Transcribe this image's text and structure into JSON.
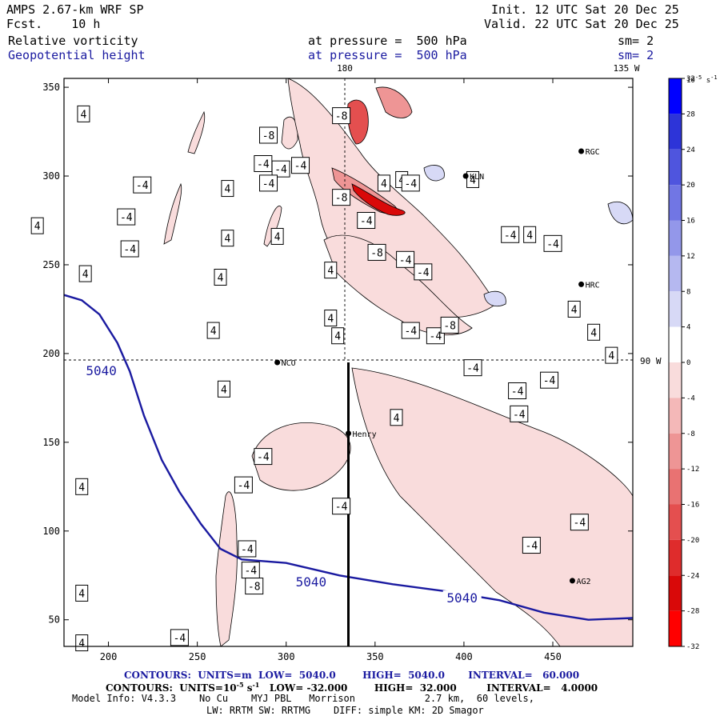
{
  "header": {
    "model": "AMPS 2.67-km WRF SP",
    "fcst": "Fcst.    10 h",
    "init": "Init. 12 UTC Sat 20 Dec 25",
    "valid": "Valid. 22 UTC Sat 20 Dec 25",
    "field1": "Relative vorticity",
    "field2": "Geopotential height",
    "pressure1": "at pressure =  500 hPa",
    "pressure2": "at pressure =  500 hPa",
    "sm1": "sm= 2",
    "sm2": "sm= 2"
  },
  "footer": {
    "line1": "CONTOURS:  UNITS=m  LOW=  5040.0        HIGH=  5040.0       INTERVAL=   60.000",
    "line2_pre": "CONTOURS:  UNITS=10",
    "line2_exp1": "-5",
    "line2_s": " s",
    "line2_exp2": "-1",
    "line2_post": "   LOW= -32.000        HIGH=  32.000         INTERVAL=   4.0000",
    "line3": "Model Info: V4.3.3    No Cu    MYJ PBL   Morrison            2.7 km,  60 levels,",
    "line4": "LW: RRTM SW: RRTMG    DIFF: simple KM: 2D Smagor"
  },
  "colors": {
    "height_contour": "#1a1aa0",
    "pos_vort": [
      "#f9dcdc",
      "#f4b8b8",
      "#ee9595",
      "#e97272",
      "#e44f4f",
      "#df2c2c",
      "#d90909",
      "#ff0000"
    ],
    "neg_vort": [
      "#ffffff",
      "#d7d9f6",
      "#b5b8f0",
      "#9397ea",
      "#7176e4",
      "#4f55de",
      "#2d34d8",
      "#0000ff"
    ]
  },
  "chart_data": {
    "type": "contour_map",
    "title": "AMPS 2.67-km WRF SP - Relative vorticity and Geopotential height at 500 hPa",
    "x_ticks": [
      200,
      250,
      300,
      350,
      400,
      450
    ],
    "y_ticks": [
      50,
      100,
      150,
      200,
      250,
      300,
      350
    ],
    "xlim": [
      175,
      495
    ],
    "ylim": [
      35,
      355
    ],
    "meridian_labels": [
      {
        "text": "180"
      },
      {
        "text": "135 W"
      },
      {
        "text": "90 W"
      }
    ],
    "height_contour_value": 5040,
    "height_contour_labels": [
      "5040",
      "5040",
      "5040"
    ],
    "height_contour": [
      [
        175,
        233
      ],
      [
        185,
        230
      ],
      [
        195,
        222
      ],
      [
        205,
        206
      ],
      [
        212,
        190
      ],
      [
        220,
        165
      ],
      [
        230,
        140
      ],
      [
        240,
        122
      ],
      [
        252,
        104
      ],
      [
        263,
        90
      ],
      [
        275,
        84
      ],
      [
        300,
        82
      ],
      [
        330,
        75
      ],
      [
        360,
        70
      ],
      [
        390,
        66
      ],
      [
        420,
        61
      ],
      [
        445,
        54
      ],
      [
        470,
        50
      ],
      [
        495,
        51
      ]
    ],
    "stations": [
      {
        "name": "NCO",
        "x": 295,
        "y": 195
      },
      {
        "name": "Henry",
        "x": 335,
        "y": 155
      },
      {
        "name": "KLN",
        "x": 401,
        "y": 300
      },
      {
        "name": "RGC",
        "x": 466,
        "y": 314
      },
      {
        "name": "HRC",
        "x": 466,
        "y": 239
      },
      {
        "name": "AG2",
        "x": 461,
        "y": 72
      }
    ],
    "cross_section": {
      "x": 335,
      "y_from": 35,
      "y_to": 195
    },
    "colorbar": {
      "label": "10",
      "label_exp": "-5",
      "label_unit": " s",
      "label_unit_exp": "-1",
      "ticks": [
        32,
        28,
        24,
        20,
        16,
        12,
        8,
        4,
        0,
        -4,
        -8,
        -12,
        -16,
        -20,
        -24,
        -28,
        -32
      ],
      "range": [
        -32,
        32
      ],
      "interval": 4
    },
    "vorticity_labels": [
      {
        "t": "4",
        "x": 186,
        "y": 335
      },
      {
        "t": "4",
        "x": 160,
        "y": 272
      },
      {
        "t": "4",
        "x": 187,
        "y": 245
      },
      {
        "t": "4",
        "x": 267,
        "y": 293
      },
      {
        "t": "4",
        "x": 267,
        "y": 265
      },
      {
        "t": "4",
        "x": 263,
        "y": 243
      },
      {
        "t": "4",
        "x": 259,
        "y": 213
      },
      {
        "t": "4",
        "x": 295,
        "y": 266
      },
      {
        "t": "4",
        "x": 325,
        "y": 247
      },
      {
        "t": "4",
        "x": 325,
        "y": 220
      },
      {
        "t": "4",
        "x": 329,
        "y": 210
      },
      {
        "t": "4",
        "x": 265,
        "y": 180
      },
      {
        "t": "4",
        "x": 362,
        "y": 164
      },
      {
        "t": "4",
        "x": 185,
        "y": 125
      },
      {
        "t": "4",
        "x": 185,
        "y": 65
      },
      {
        "t": "4",
        "x": 185,
        "y": 37
      },
      {
        "t": "4",
        "x": 355,
        "y": 296
      },
      {
        "t": "4",
        "x": 365,
        "y": 298
      },
      {
        "t": "4",
        "x": 405,
        "y": 298
      },
      {
        "t": "4",
        "x": 437,
        "y": 267
      },
      {
        "t": "4",
        "x": 462,
        "y": 225
      },
      {
        "t": "4",
        "x": 473,
        "y": 212
      },
      {
        "t": "4",
        "x": 483,
        "y": 199
      },
      {
        "t": "-4",
        "x": 219,
        "y": 295
      },
      {
        "t": "-4",
        "x": 210,
        "y": 277
      },
      {
        "t": "-4",
        "x": 212,
        "y": 259
      },
      {
        "t": "-4",
        "x": 287,
        "y": 307
      },
      {
        "t": "-4",
        "x": 297,
        "y": 304
      },
      {
        "t": "-4",
        "x": 308,
        "y": 306
      },
      {
        "t": "-4",
        "x": 290,
        "y": 296
      },
      {
        "t": "-4",
        "x": 345,
        "y": 275
      },
      {
        "t": "-4",
        "x": 367,
        "y": 253
      },
      {
        "t": "-4",
        "x": 377,
        "y": 246
      },
      {
        "t": "-4",
        "x": 370,
        "y": 213
      },
      {
        "t": "-4",
        "x": 384,
        "y": 210
      },
      {
        "t": "-4",
        "x": 405,
        "y": 192
      },
      {
        "t": "-4",
        "x": 430,
        "y": 179
      },
      {
        "t": "-4",
        "x": 448,
        "y": 185
      },
      {
        "t": "-4",
        "x": 431,
        "y": 166
      },
      {
        "t": "-4",
        "x": 287,
        "y": 142
      },
      {
        "t": "-4",
        "x": 276,
        "y": 126
      },
      {
        "t": "-4",
        "x": 331,
        "y": 114
      },
      {
        "t": "-4",
        "x": 278,
        "y": 90
      },
      {
        "t": "-4",
        "x": 280,
        "y": 78
      },
      {
        "t": "-4",
        "x": 240,
        "y": 40
      },
      {
        "t": "-4",
        "x": 438,
        "y": 92
      },
      {
        "t": "-4",
        "x": 465,
        "y": 105
      },
      {
        "t": "-4",
        "x": 370,
        "y": 296
      },
      {
        "t": "-4",
        "x": 426,
        "y": 267
      },
      {
        "t": "-4",
        "x": 450,
        "y": 262
      },
      {
        "t": "-8",
        "x": 290,
        "y": 323
      },
      {
        "t": "-8",
        "x": 331,
        "y": 334
      },
      {
        "t": "-8",
        "x": 351,
        "y": 257
      },
      {
        "t": "-8",
        "x": 392,
        "y": 216
      },
      {
        "t": "-8",
        "x": 282,
        "y": 69
      },
      {
        "t": "-8",
        "x": 331,
        "y": 288
      }
    ]
  }
}
